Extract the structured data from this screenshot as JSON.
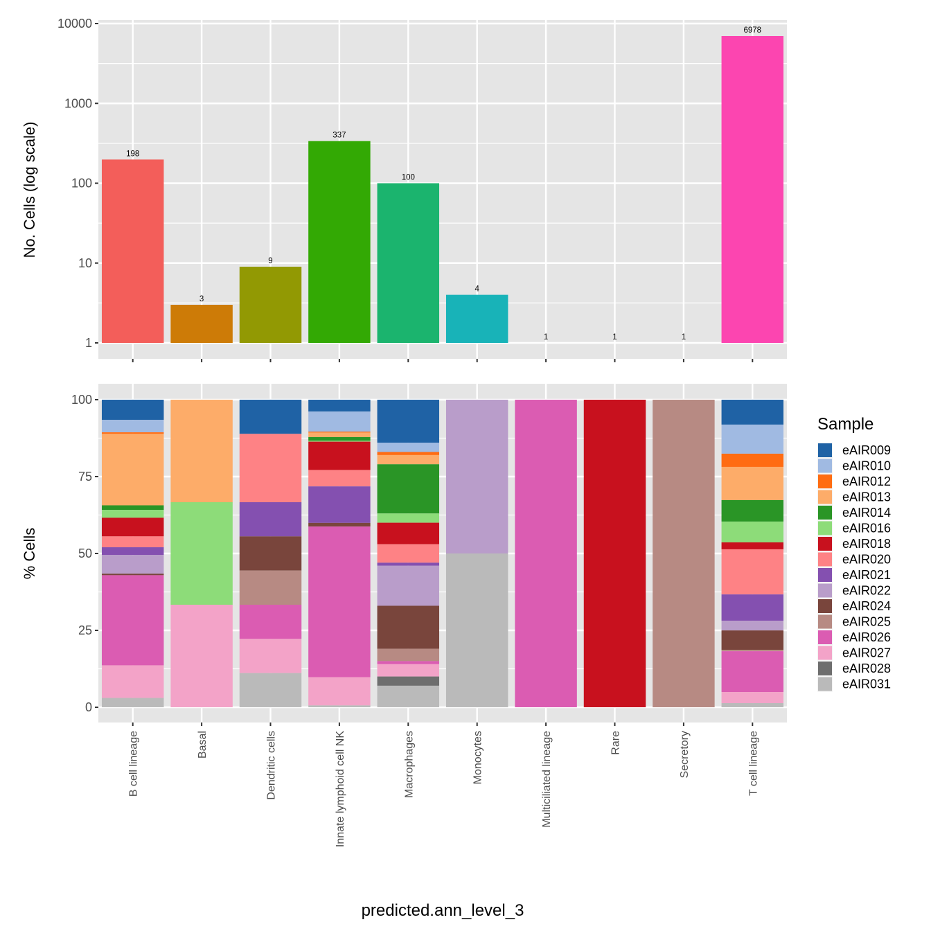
{
  "chart_data": [
    {
      "type": "bar",
      "panel": "top",
      "scale": "log10",
      "ylabel": "No. Cells (log scale)",
      "xlabel": "",
      "ylim": [
        1,
        10000
      ],
      "yticks": [
        1,
        10,
        100,
        1000,
        10000
      ],
      "ytick_labels": [
        "1",
        "10",
        "100",
        "1000",
        "10000"
      ],
      "grid": true,
      "categories": [
        "B cell lineage",
        "Basal",
        "Dendritic cells",
        "Innate lymphoid cell NK",
        "Macrophages",
        "Monocytes",
        "Multiciliated lineage",
        "Rare",
        "Secretory",
        "T cell lineage"
      ],
      "values": [
        198,
        3,
        9,
        337,
        100,
        4,
        1,
        1,
        1,
        6978
      ],
      "data_labels": [
        "198",
        "3",
        "9",
        "337",
        "100",
        "4",
        "1",
        "1",
        "1",
        "6978"
      ],
      "colors": [
        "#F35E5A",
        "#CD7B07",
        "#929903",
        "#33A904",
        "#1BB46E",
        "#18B3B8",
        "#3BA2F6",
        "#9C8BFF",
        "#E26CF0",
        "#FC45B0"
      ]
    },
    {
      "type": "bar",
      "panel": "bottom",
      "stacked": "percent",
      "ylabel": "% Cells",
      "xlabel": "predicted.ann_level_3",
      "ylim": [
        0,
        100
      ],
      "yticks": [
        0,
        25,
        50,
        75,
        100
      ],
      "ytick_labels": [
        "0",
        "25",
        "50",
        "75",
        "100"
      ],
      "grid": true,
      "legend_title": "Sample",
      "legend_position": "right",
      "categories": [
        "B cell lineage",
        "Basal",
        "Dendritic cells",
        "Innate lymphoid cell NK",
        "Macrophages",
        "Monocytes",
        "Multiciliated lineage",
        "Rare",
        "Secretory",
        "T cell lineage"
      ],
      "series": [
        {
          "name": "eAIR009",
          "color": "#1F62A5",
          "values": [
            13,
            0,
            1,
            13,
            14,
            0,
            0,
            0,
            0,
            565
          ]
        },
        {
          "name": "eAIR010",
          "color": "#A0BAE2",
          "values": [
            8,
            0,
            0,
            22,
            3,
            0,
            0,
            0,
            0,
            660
          ]
        },
        {
          "name": "eAIR012",
          "color": "#FF6C12",
          "values": [
            1,
            0,
            0,
            1,
            1,
            0,
            0,
            0,
            0,
            299
          ]
        },
        {
          "name": "eAIR013",
          "color": "#FDAC69",
          "values": [
            46,
            1,
            0,
            5,
            3,
            0,
            0,
            0,
            0,
            754
          ]
        },
        {
          "name": "eAIR014",
          "color": "#2A9526",
          "values": [
            3,
            0,
            0,
            4,
            16,
            0,
            0,
            0,
            0,
            487
          ]
        },
        {
          "name": "eAIR016",
          "color": "#8DDC79",
          "values": [
            5,
            1,
            0,
            1,
            3,
            0,
            0,
            0,
            0,
            472
          ]
        },
        {
          "name": "eAIR018",
          "color": "#C8111E",
          "values": [
            12,
            0,
            0,
            31,
            7,
            0,
            0,
            1,
            0,
            157
          ]
        },
        {
          "name": "eAIR020",
          "color": "#FE8285",
          "values": [
            7,
            0,
            2,
            18,
            6,
            0,
            0,
            0,
            0,
            1024
          ]
        },
        {
          "name": "eAIR021",
          "color": "#8450B0",
          "values": [
            5,
            0,
            1,
            40,
            1,
            0,
            0,
            0,
            0,
            597
          ]
        },
        {
          "name": "eAIR022",
          "color": "#B99DCA",
          "values": [
            12,
            0,
            0,
            0,
            13,
            2,
            0,
            0,
            0,
            220
          ]
        },
        {
          "name": "eAIR024",
          "color": "#79453C",
          "values": [
            1,
            0,
            1,
            4,
            14,
            0,
            0,
            0,
            0,
            440
          ]
        },
        {
          "name": "eAIR025",
          "color": "#B78A83",
          "values": [
            0,
            0,
            1,
            0,
            4,
            0,
            0,
            0,
            1,
            31
          ]
        },
        {
          "name": "eAIR026",
          "color": "#DB5CB2",
          "values": [
            58,
            0,
            1,
            165,
            1,
            0,
            1,
            0,
            0,
            927
          ]
        },
        {
          "name": "eAIR027",
          "color": "#F3A3C8",
          "values": [
            21,
            1,
            1,
            31,
            4,
            0,
            0,
            0,
            0,
            251
          ]
        },
        {
          "name": "eAIR028",
          "color": "#6E6E6E",
          "values": [
            0,
            0,
            0,
            0,
            3,
            0,
            0,
            0,
            0,
            0
          ]
        },
        {
          "name": "eAIR031",
          "color": "#BABABA",
          "values": [
            6,
            0,
            1,
            2,
            7,
            2,
            0,
            0,
            0,
            94
          ]
        }
      ]
    }
  ],
  "theme": {
    "panel_bg": "#E5E5E5",
    "grid_color": "#FFFFFF",
    "tick_color": "#333333"
  }
}
